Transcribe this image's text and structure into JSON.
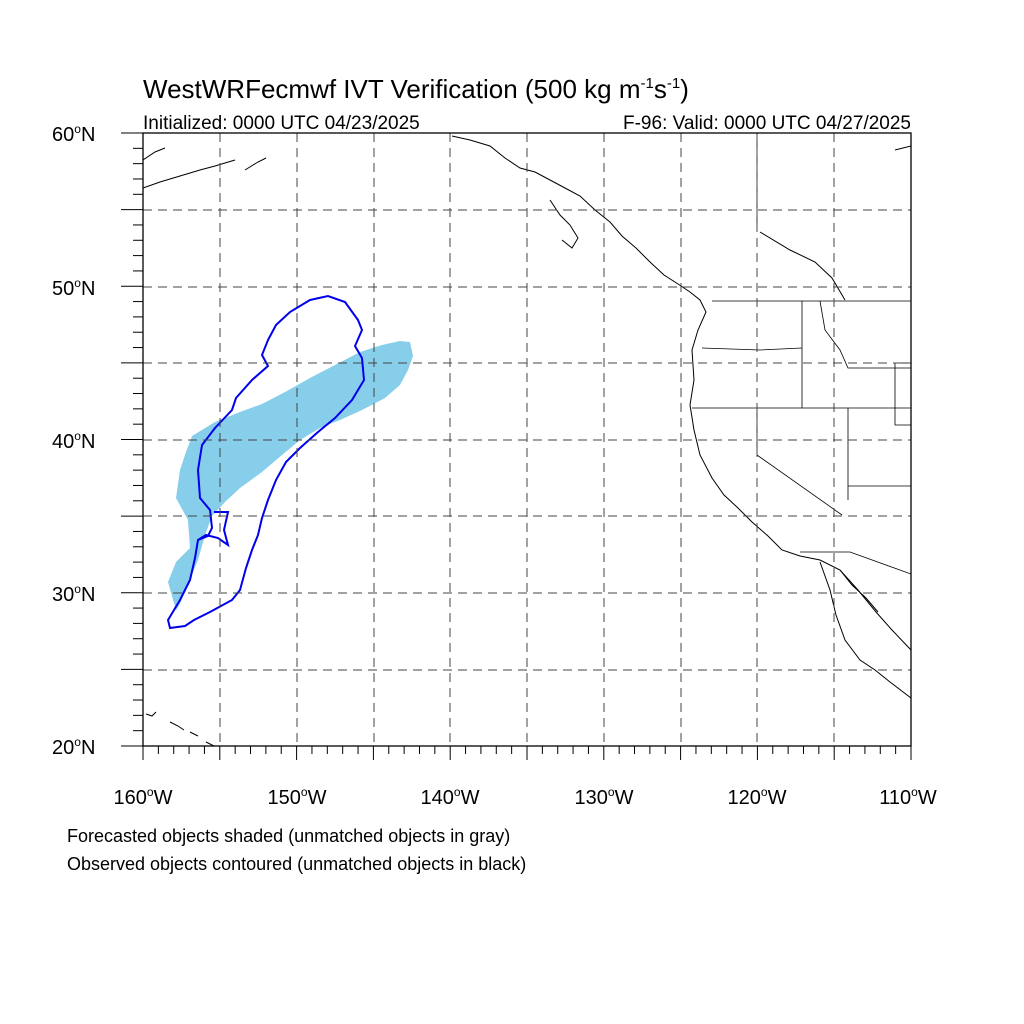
{
  "header": {
    "title_main": "WestWRFecmwf IVT Verification (500 kg m",
    "title_sup1": "-1",
    "title_mid": "s",
    "title_sup2": "-1",
    "title_end": ")",
    "initialized": "Initialized: 0000 UTC 04/23/2025",
    "valid": "F-96: Valid: 0000 UTC 04/27/2025"
  },
  "map": {
    "lon_range": [
      -160,
      -110
    ],
    "lat_range": [
      20,
      60
    ],
    "gridlines": "dashed",
    "lat_labels": [
      "60",
      "50",
      "40",
      "30",
      "20"
    ],
    "lat_suffix": "N",
    "lon_labels": [
      "160",
      "150",
      "140",
      "130",
      "120",
      "110"
    ],
    "lon_suffix": "W",
    "degree_symbol": "o",
    "colors": {
      "forecast_fill": "#87ceeb",
      "observed_contour": "#0000ee",
      "coastline": "#000000",
      "grid": "#555555"
    }
  },
  "legend": {
    "line1": "Forecasted objects shaded (unmatched objects in gray)",
    "line2": "Observed objects contoured (unmatched objects in black)"
  }
}
